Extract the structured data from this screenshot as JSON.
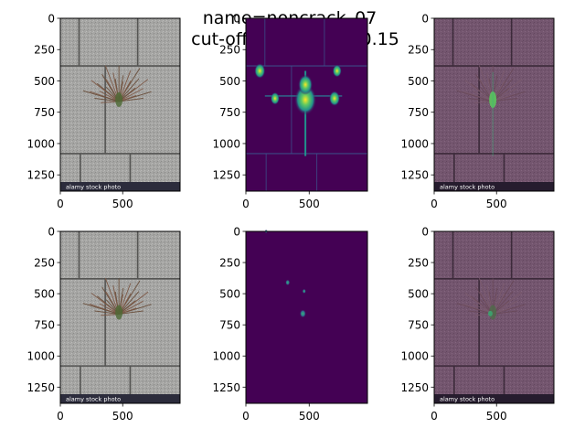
{
  "figure": {
    "title_line1": "name=noncrack_07",
    "title_line2": "cut-off threshold = 0.15"
  },
  "chart_data": [
    {
      "type": "heatmap",
      "content": "photo of paving stones with a weed growing in the joints",
      "caption": "alamy stock photo",
      "ytick_labels": [
        "0",
        "250",
        "500",
        "750",
        "1000",
        "1250"
      ],
      "xtick_labels": [
        "0",
        "500"
      ],
      "ylim": [
        1380,
        0
      ],
      "xlim": [
        0,
        960
      ]
    },
    {
      "type": "heatmap",
      "content": "crack probability map (viridis), before threshold",
      "colormap": "viridis",
      "ytick_labels": [
        "0",
        "250",
        "500",
        "750",
        "1000",
        "1250"
      ],
      "xtick_labels": [
        "0",
        "500"
      ],
      "ylim": [
        1380,
        0
      ],
      "xlim": [
        0,
        960
      ]
    },
    {
      "type": "heatmap",
      "content": "probability map overlaid on photo",
      "caption": "alamy stock photo",
      "ytick_labels": [
        "0",
        "250",
        "500",
        "750",
        "1000",
        "1250"
      ],
      "xtick_labels": [
        "0",
        "500"
      ],
      "ylim": [
        1380,
        0
      ],
      "xlim": [
        0,
        960
      ]
    },
    {
      "type": "heatmap",
      "content": "photo of paving stones with a weed growing in the joints",
      "caption": "alamy stock photo",
      "ytick_labels": [
        "0",
        "250",
        "500",
        "750",
        "1000",
        "1250"
      ],
      "xtick_labels": [
        "0",
        "500"
      ],
      "ylim": [
        1380,
        0
      ],
      "xlim": [
        0,
        960
      ]
    },
    {
      "type": "heatmap",
      "content": "thresholded crack mask (viridis)",
      "colormap": "viridis",
      "ytick_labels": [
        "0",
        "250",
        "500",
        "750",
        "1000",
        "1250"
      ],
      "xtick_labels": [
        "0",
        "500"
      ],
      "ylim": [
        1380,
        0
      ],
      "xlim": [
        0,
        960
      ]
    },
    {
      "type": "heatmap",
      "content": "thresholded mask overlaid on photo",
      "caption": "alamy stock photo",
      "ytick_labels": [
        "0",
        "250",
        "500",
        "750",
        "1000",
        "1250"
      ],
      "xtick_labels": [
        "0",
        "500"
      ],
      "ylim": [
        1380,
        0
      ],
      "xlim": [
        0,
        960
      ]
    }
  ]
}
